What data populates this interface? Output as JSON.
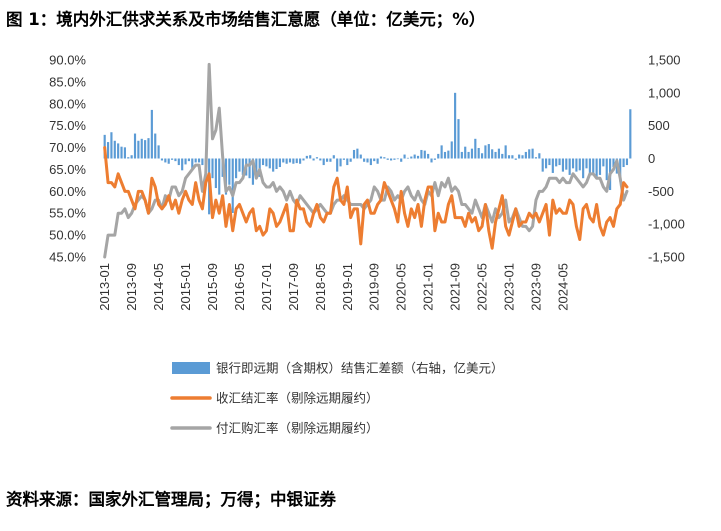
{
  "title": "图 1：境内外汇供求关系及市场结售汇意愿（单位：亿美元；%）",
  "source": "资料来源：国家外汇管理局；万得；中银证券",
  "chart_data": {
    "type": "bar+line",
    "left_axis": {
      "min": 45,
      "max": 90,
      "ticks": [
        "45.0%",
        "50.0%",
        "55.0%",
        "60.0%",
        "65.0%",
        "70.0%",
        "75.0%",
        "80.0%",
        "85.0%",
        "90.0%"
      ]
    },
    "right_axis": {
      "min": -1500,
      "max": 1500,
      "ticks": [
        "-1,500",
        "-1,000",
        "-500",
        "0",
        "500",
        "1,000",
        "1,500"
      ]
    },
    "x_ticks": [
      "2013-01",
      "2013-09",
      "2014-05",
      "2015-01",
      "2015-09",
      "2016-05",
      "2017-01",
      "2017-09",
      "2018-05",
      "2019-01",
      "2019-09",
      "2020-05",
      "2021-01",
      "2021-09",
      "2022-05",
      "2023-01",
      "2023-09",
      "2024-05"
    ],
    "start": "2013-01",
    "colors": {
      "bar": "#5B9BD5",
      "settlement": "#ED7D31",
      "purchase": "#A5A5A5"
    },
    "series": [
      {
        "name": "银行即远期（含期权）结售汇差额（右轴，亿美元）",
        "axis": "right",
        "kind": "bar",
        "values": [
          360,
          250,
          400,
          270,
          230,
          180,
          170,
          20,
          50,
          380,
          270,
          300,
          280,
          310,
          740,
          380,
          200,
          -30,
          -60,
          -80,
          -20,
          -40,
          -100,
          -180,
          -90,
          -40,
          -150,
          -60,
          -60,
          -100,
          -250,
          -850,
          -300,
          -450,
          -550,
          -280,
          -550,
          -400,
          -830,
          -300,
          -200,
          -250,
          -260,
          -300,
          -400,
          -290,
          -280,
          -100,
          -120,
          -150,
          -200,
          -160,
          -130,
          -60,
          -80,
          -60,
          -80,
          -70,
          -80,
          -30,
          40,
          50,
          -30,
          20,
          -30,
          -100,
          -50,
          -50,
          50,
          -200,
          -120,
          -20,
          -100,
          -50,
          130,
          150,
          60,
          -50,
          -60,
          -100,
          -40,
          -80,
          30,
          20,
          -20,
          -30,
          -20,
          -10,
          -50,
          60,
          10,
          30,
          60,
          40,
          130,
          120,
          70,
          -60,
          -20,
          70,
          200,
          100,
          120,
          260,
          1000,
          600,
          100,
          180,
          100,
          150,
          300,
          160,
          80,
          200,
          220,
          140,
          100,
          150,
          70,
          200,
          50,
          50,
          -20,
          60,
          50,
          100,
          140,
          150,
          20,
          80,
          -200,
          -150,
          -100,
          -220,
          -120,
          -100,
          -200,
          -170,
          -250,
          -150,
          -200,
          -180,
          -300,
          -150,
          -250,
          -230,
          -300,
          -250,
          -120,
          -330,
          -480,
          -130,
          -230,
          -350,
          -130,
          -100,
          750
        ]
      },
      {
        "name": "收汇结汇率（剔除远期履约）",
        "axis": "left",
        "kind": "line",
        "values": [
          70,
          62,
          62,
          61,
          64,
          62,
          60,
          60,
          58,
          56,
          60,
          60,
          58,
          55,
          63,
          61,
          57,
          56,
          57,
          59,
          56,
          58,
          55,
          58,
          60,
          58,
          57,
          62,
          58,
          56,
          62,
          64,
          54,
          58,
          55,
          59,
          52,
          57,
          51,
          56,
          57,
          55,
          53,
          55,
          56,
          51,
          52,
          50,
          51,
          56,
          55,
          52,
          53,
          55,
          57,
          51,
          51,
          58,
          56,
          56,
          53,
          52,
          55,
          57,
          54,
          53,
          55,
          55,
          61,
          63,
          58,
          57,
          61,
          54,
          56,
          56,
          48,
          57,
          58,
          55,
          55,
          57,
          58,
          62,
          60,
          58,
          56,
          53,
          60,
          55,
          52,
          56,
          54,
          57,
          52,
          58,
          61,
          61,
          51,
          55,
          53,
          53,
          57,
          59,
          54,
          54,
          54,
          52,
          55,
          53,
          54,
          51,
          52,
          57,
          51,
          47,
          53,
          56,
          59,
          52,
          50,
          53,
          56,
          52,
          53,
          53,
          55,
          54,
          55,
          53,
          55,
          57,
          50,
          58,
          55,
          56,
          55,
          55,
          58,
          57,
          52,
          49,
          56,
          57,
          54,
          53,
          57,
          52,
          50,
          53,
          54,
          52,
          56,
          57,
          62,
          61
        ]
      },
      {
        "name": "付汇购汇率（剔除远期履约）",
        "axis": "left",
        "kind": "line",
        "values": [
          45,
          50,
          50,
          50,
          55,
          55,
          56,
          54,
          55,
          57,
          58,
          59,
          58,
          55,
          56,
          58,
          58,
          56,
          59,
          58,
          61,
          61,
          59,
          60,
          63,
          64,
          65,
          66,
          66,
          60,
          64,
          89,
          72,
          74,
          79,
          68,
          60,
          61,
          59,
          62,
          62,
          63,
          66,
          66,
          67,
          63,
          65,
          62,
          61,
          61,
          62,
          60,
          61,
          60,
          58,
          60,
          58,
          57,
          59,
          58,
          57,
          56,
          55,
          56,
          57,
          56,
          55,
          55,
          57,
          58,
          58,
          59,
          58,
          57,
          57,
          57,
          57,
          56,
          57,
          58,
          61,
          60,
          58,
          58,
          61,
          60,
          58,
          59,
          58,
          60,
          61,
          59,
          58,
          60,
          58,
          57,
          60,
          59,
          62,
          59,
          62,
          61,
          63,
          60,
          61,
          60,
          57,
          57,
          56,
          55,
          58,
          56,
          54,
          57,
          55,
          53,
          56,
          54,
          55,
          58,
          53,
          54,
          56,
          54,
          52,
          52,
          51,
          52,
          58,
          60,
          60,
          61,
          63,
          63,
          63,
          62,
          63,
          62,
          62,
          64,
          63,
          62,
          61,
          62,
          64,
          64,
          63,
          63,
          61,
          60,
          64,
          65,
          67,
          63,
          58,
          60
        ]
      }
    ]
  }
}
